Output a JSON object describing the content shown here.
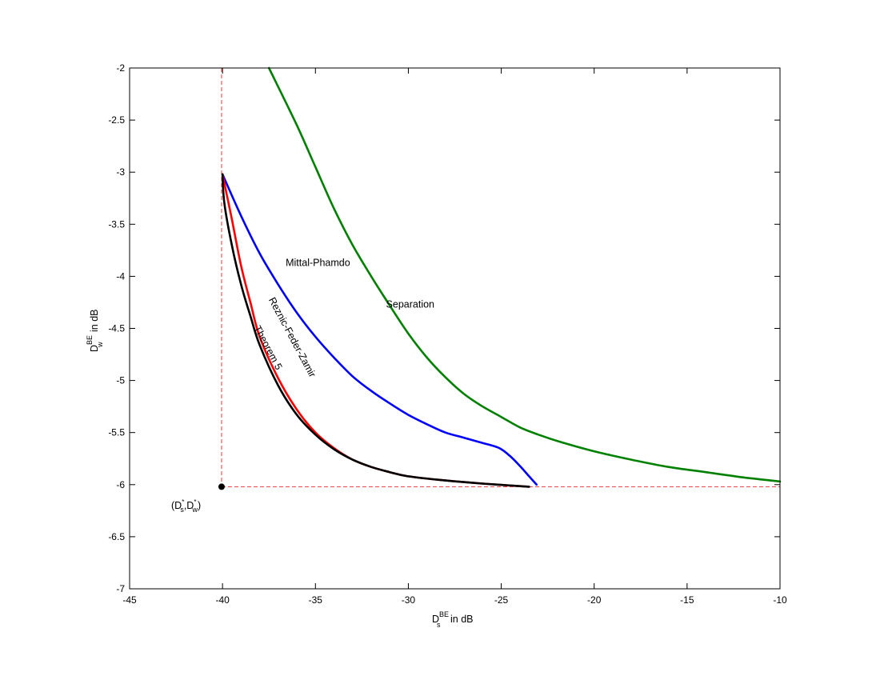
{
  "chart_data": {
    "type": "line",
    "xlim": [
      -45,
      -10
    ],
    "ylim": [
      -7,
      -2
    ],
    "xticks": [
      -45,
      -40,
      -35,
      -30,
      -25,
      -20,
      -15,
      -10
    ],
    "yticks": [
      -7,
      -6.5,
      -6,
      -5.5,
      -5,
      -4.5,
      -4,
      -3.5,
      -3,
      -2.5,
      -2
    ],
    "xlabel_base": "D",
    "xlabel_sup": "BE",
    "xlabel_sub": "s",
    "xlabel_suffix": " in dB",
    "ylabel_base": "D",
    "ylabel_sup": "BE",
    "ylabel_sub": "w",
    "ylabel_suffix": " in dB",
    "grid": false,
    "series": [
      {
        "name": "Separation",
        "color": "#008000",
        "points": [
          [
            -37.5,
            -2.0
          ],
          [
            -36.0,
            -2.55
          ],
          [
            -35.0,
            -2.95
          ],
          [
            -34.0,
            -3.35
          ],
          [
            -33.0,
            -3.7
          ],
          [
            -32.0,
            -4.0
          ],
          [
            -31.0,
            -4.28
          ],
          [
            -30.0,
            -4.55
          ],
          [
            -29.0,
            -4.78
          ],
          [
            -28.0,
            -4.97
          ],
          [
            -27.0,
            -5.13
          ],
          [
            -26.0,
            -5.25
          ],
          [
            -25.0,
            -5.35
          ],
          [
            -24.0,
            -5.45
          ],
          [
            -23.0,
            -5.52
          ],
          [
            -22.0,
            -5.58
          ],
          [
            -20.0,
            -5.68
          ],
          [
            -18.0,
            -5.76
          ],
          [
            -16.0,
            -5.83
          ],
          [
            -14.0,
            -5.88
          ],
          [
            -12.0,
            -5.93
          ],
          [
            -10.0,
            -5.97
          ]
        ]
      },
      {
        "name": "Mittal-Phamdo",
        "color": "#0000ff",
        "points": [
          [
            -40.0,
            -3.02
          ],
          [
            -39.0,
            -3.42
          ],
          [
            -38.0,
            -3.78
          ],
          [
            -37.0,
            -4.08
          ],
          [
            -36.0,
            -4.35
          ],
          [
            -35.0,
            -4.58
          ],
          [
            -34.0,
            -4.78
          ],
          [
            -33.0,
            -4.96
          ],
          [
            -32.0,
            -5.1
          ],
          [
            -31.0,
            -5.22
          ],
          [
            -30.0,
            -5.33
          ],
          [
            -29.0,
            -5.42
          ],
          [
            -28.0,
            -5.5
          ],
          [
            -27.0,
            -5.55
          ],
          [
            -26.0,
            -5.6
          ],
          [
            -25.1,
            -5.65
          ],
          [
            -24.5,
            -5.73
          ],
          [
            -24.0,
            -5.82
          ],
          [
            -23.5,
            -5.92
          ],
          [
            -23.1,
            -6.0
          ]
        ]
      },
      {
        "name": "Reznic-Feder-Zamir",
        "color": "#ff0000",
        "points": [
          [
            -40.0,
            -3.02
          ],
          [
            -39.5,
            -3.45
          ],
          [
            -39.0,
            -3.9
          ],
          [
            -38.5,
            -4.25
          ],
          [
            -38.0,
            -4.58
          ],
          [
            -37.0,
            -4.98
          ],
          [
            -36.0,
            -5.28
          ],
          [
            -35.0,
            -5.5
          ],
          [
            -34.0,
            -5.65
          ],
          [
            -33.0,
            -5.76
          ],
          [
            -32.0,
            -5.83
          ],
          [
            -31.0,
            -5.88
          ],
          [
            -30.0,
            -5.92
          ],
          [
            -28.0,
            -5.96
          ],
          [
            -26.0,
            -5.99
          ],
          [
            -23.5,
            -6.02
          ]
        ]
      },
      {
        "name": "Theorem 5",
        "color": "#000000",
        "points": [
          [
            -40.0,
            -3.02
          ],
          [
            -39.9,
            -3.3
          ],
          [
            -39.5,
            -3.7
          ],
          [
            -39.0,
            -4.08
          ],
          [
            -38.5,
            -4.38
          ],
          [
            -38.0,
            -4.66
          ],
          [
            -37.0,
            -5.05
          ],
          [
            -36.0,
            -5.33
          ],
          [
            -35.0,
            -5.52
          ],
          [
            -34.0,
            -5.66
          ],
          [
            -33.0,
            -5.76
          ],
          [
            -32.0,
            -5.83
          ],
          [
            -31.0,
            -5.88
          ],
          [
            -30.0,
            -5.92
          ],
          [
            -28.0,
            -5.96
          ],
          [
            -26.0,
            -5.99
          ],
          [
            -23.5,
            -6.02
          ]
        ]
      }
    ],
    "reference_lines": {
      "color": "#ff0000",
      "vertical_x": -40.05,
      "horizontal_y": -6.02
    },
    "marker": {
      "x": -40.05,
      "y": -6.02,
      "label": "(D*s,D*w)"
    },
    "annotations": [
      {
        "text": "Separation",
        "x": -31.2,
        "y": -4.3,
        "rotate": 0
      },
      {
        "text": "Mittal-Phamdo",
        "x": -36.6,
        "y": -3.9,
        "rotate": 0
      },
      {
        "text": "Rezniс-Feder-Zamir",
        "x": -36.4,
        "y": -4.6,
        "rotate": 62
      },
      {
        "text": "Theorem 5",
        "x": -37.7,
        "y": -4.7,
        "rotate": 62
      }
    ]
  }
}
